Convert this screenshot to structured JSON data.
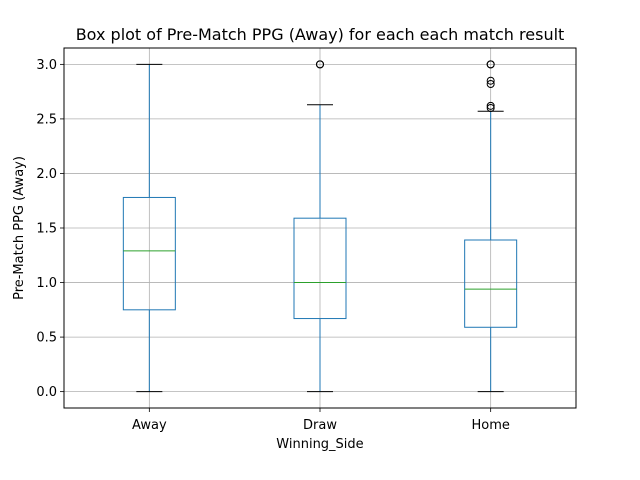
{
  "chart_data": {
    "type": "box",
    "title": "Box plot of Pre-Match PPG (Away) for each each match result",
    "xlabel": "Winning_Side",
    "ylabel": "Pre-Match PPG (Away)",
    "categories": [
      "Away",
      "Draw",
      "Home"
    ],
    "ylim": [
      -0.15,
      3.15
    ],
    "yticks": [
      0.0,
      0.5,
      1.0,
      1.5,
      2.0,
      2.5,
      3.0
    ],
    "ytick_labels": [
      "0.0",
      "0.5",
      "1.0",
      "1.5",
      "2.0",
      "2.5",
      "3.0"
    ],
    "grid": true,
    "boxes": [
      {
        "category": "Away",
        "whisker_low": 0.0,
        "q1": 0.75,
        "median": 1.29,
        "q3": 1.78,
        "whisker_high": 3.0,
        "outliers": []
      },
      {
        "category": "Draw",
        "whisker_low": 0.0,
        "q1": 0.67,
        "median": 1.0,
        "q3": 1.59,
        "whisker_high": 2.63,
        "outliers": [
          3.0,
          3.0
        ]
      },
      {
        "category": "Home",
        "whisker_low": 0.0,
        "q1": 0.59,
        "median": 0.94,
        "q3": 1.39,
        "whisker_high": 2.57,
        "outliers": [
          2.6,
          2.62,
          2.82,
          2.85,
          3.0,
          3.0
        ]
      }
    ],
    "colors": {
      "box": "#1f77b4",
      "median": "#2ca02c",
      "whisker": "#1f77b4",
      "cap": "#000000",
      "outlier": "#000000",
      "grid": "#b0b0b0"
    }
  }
}
